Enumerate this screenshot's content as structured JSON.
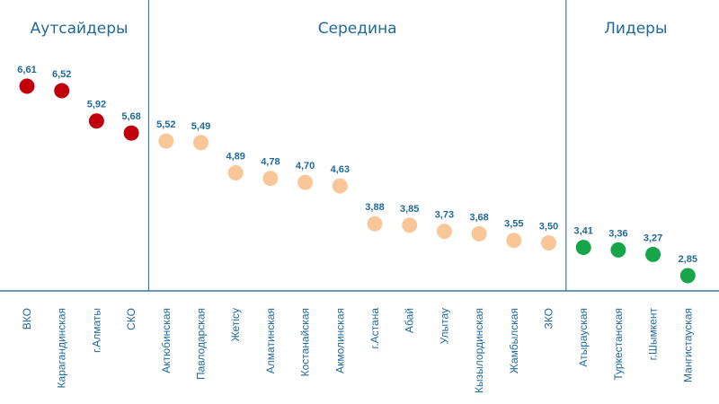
{
  "colors": {
    "axis": "#3d7c99",
    "text": "#1f6a9a",
    "outsiders": "#c0000b",
    "middle": "#f9c797",
    "leaders": "#17a54a"
  },
  "chart_data": {
    "type": "scatter",
    "x_axis_position": "bottom",
    "y_axis_visible": false,
    "grid": false,
    "legend": "none",
    "ylim": [
      2.5,
      7.0
    ],
    "groups": [
      {
        "name": "Аутсайдеры",
        "color_key": "outsiders",
        "start": 0,
        "end": 3
      },
      {
        "name": "Середина",
        "color_key": "middle",
        "start": 4,
        "end": 15
      },
      {
        "name": "Лидеры",
        "color_key": "leaders",
        "start": 16,
        "end": 19
      }
    ],
    "points": [
      {
        "category": "ВКО",
        "value": 6.61,
        "label": "6,61",
        "group": "outsiders"
      },
      {
        "category": "Карагандинская",
        "value": 6.52,
        "label": "6,52",
        "group": "outsiders"
      },
      {
        "category": "г.Алматы",
        "value": 5.92,
        "label": "5,92",
        "group": "outsiders"
      },
      {
        "category": "СКО",
        "value": 5.68,
        "label": "5,68",
        "group": "outsiders"
      },
      {
        "category": "Актюбинская",
        "value": 5.52,
        "label": "5,52",
        "group": "middle"
      },
      {
        "category": "Павлодарская",
        "value": 5.49,
        "label": "5,49",
        "group": "middle"
      },
      {
        "category": "Жетісу",
        "value": 4.89,
        "label": "4,89",
        "group": "middle"
      },
      {
        "category": "Алматинская",
        "value": 4.78,
        "label": "4,78",
        "group": "middle"
      },
      {
        "category": "Костанайская",
        "value": 4.7,
        "label": "4,70",
        "group": "middle"
      },
      {
        "category": "Акмолинская",
        "value": 4.63,
        "label": "4,63",
        "group": "middle"
      },
      {
        "category": "г.Астана",
        "value": 3.88,
        "label": "3,88",
        "group": "middle"
      },
      {
        "category": "Абай",
        "value": 3.85,
        "label": "3,85",
        "group": "middle"
      },
      {
        "category": "Улытау",
        "value": 3.73,
        "label": "3,73",
        "group": "middle"
      },
      {
        "category": "Кызылординская",
        "value": 3.68,
        "label": "3,68",
        "group": "middle"
      },
      {
        "category": "Жамбылская",
        "value": 3.55,
        "label": "3,55",
        "group": "middle"
      },
      {
        "category": "ЗКО",
        "value": 3.5,
        "label": "3,50",
        "group": "middle"
      },
      {
        "category": "Атырауская",
        "value": 3.41,
        "label": "3,41",
        "group": "leaders"
      },
      {
        "category": "Туркестанская",
        "value": 3.36,
        "label": "3,36",
        "group": "leaders"
      },
      {
        "category": "г.Шымкент",
        "value": 3.27,
        "label": "3,27",
        "group": "leaders"
      },
      {
        "category": "Мангистауская",
        "value": 2.85,
        "label": "2,85",
        "group": "leaders"
      }
    ]
  }
}
